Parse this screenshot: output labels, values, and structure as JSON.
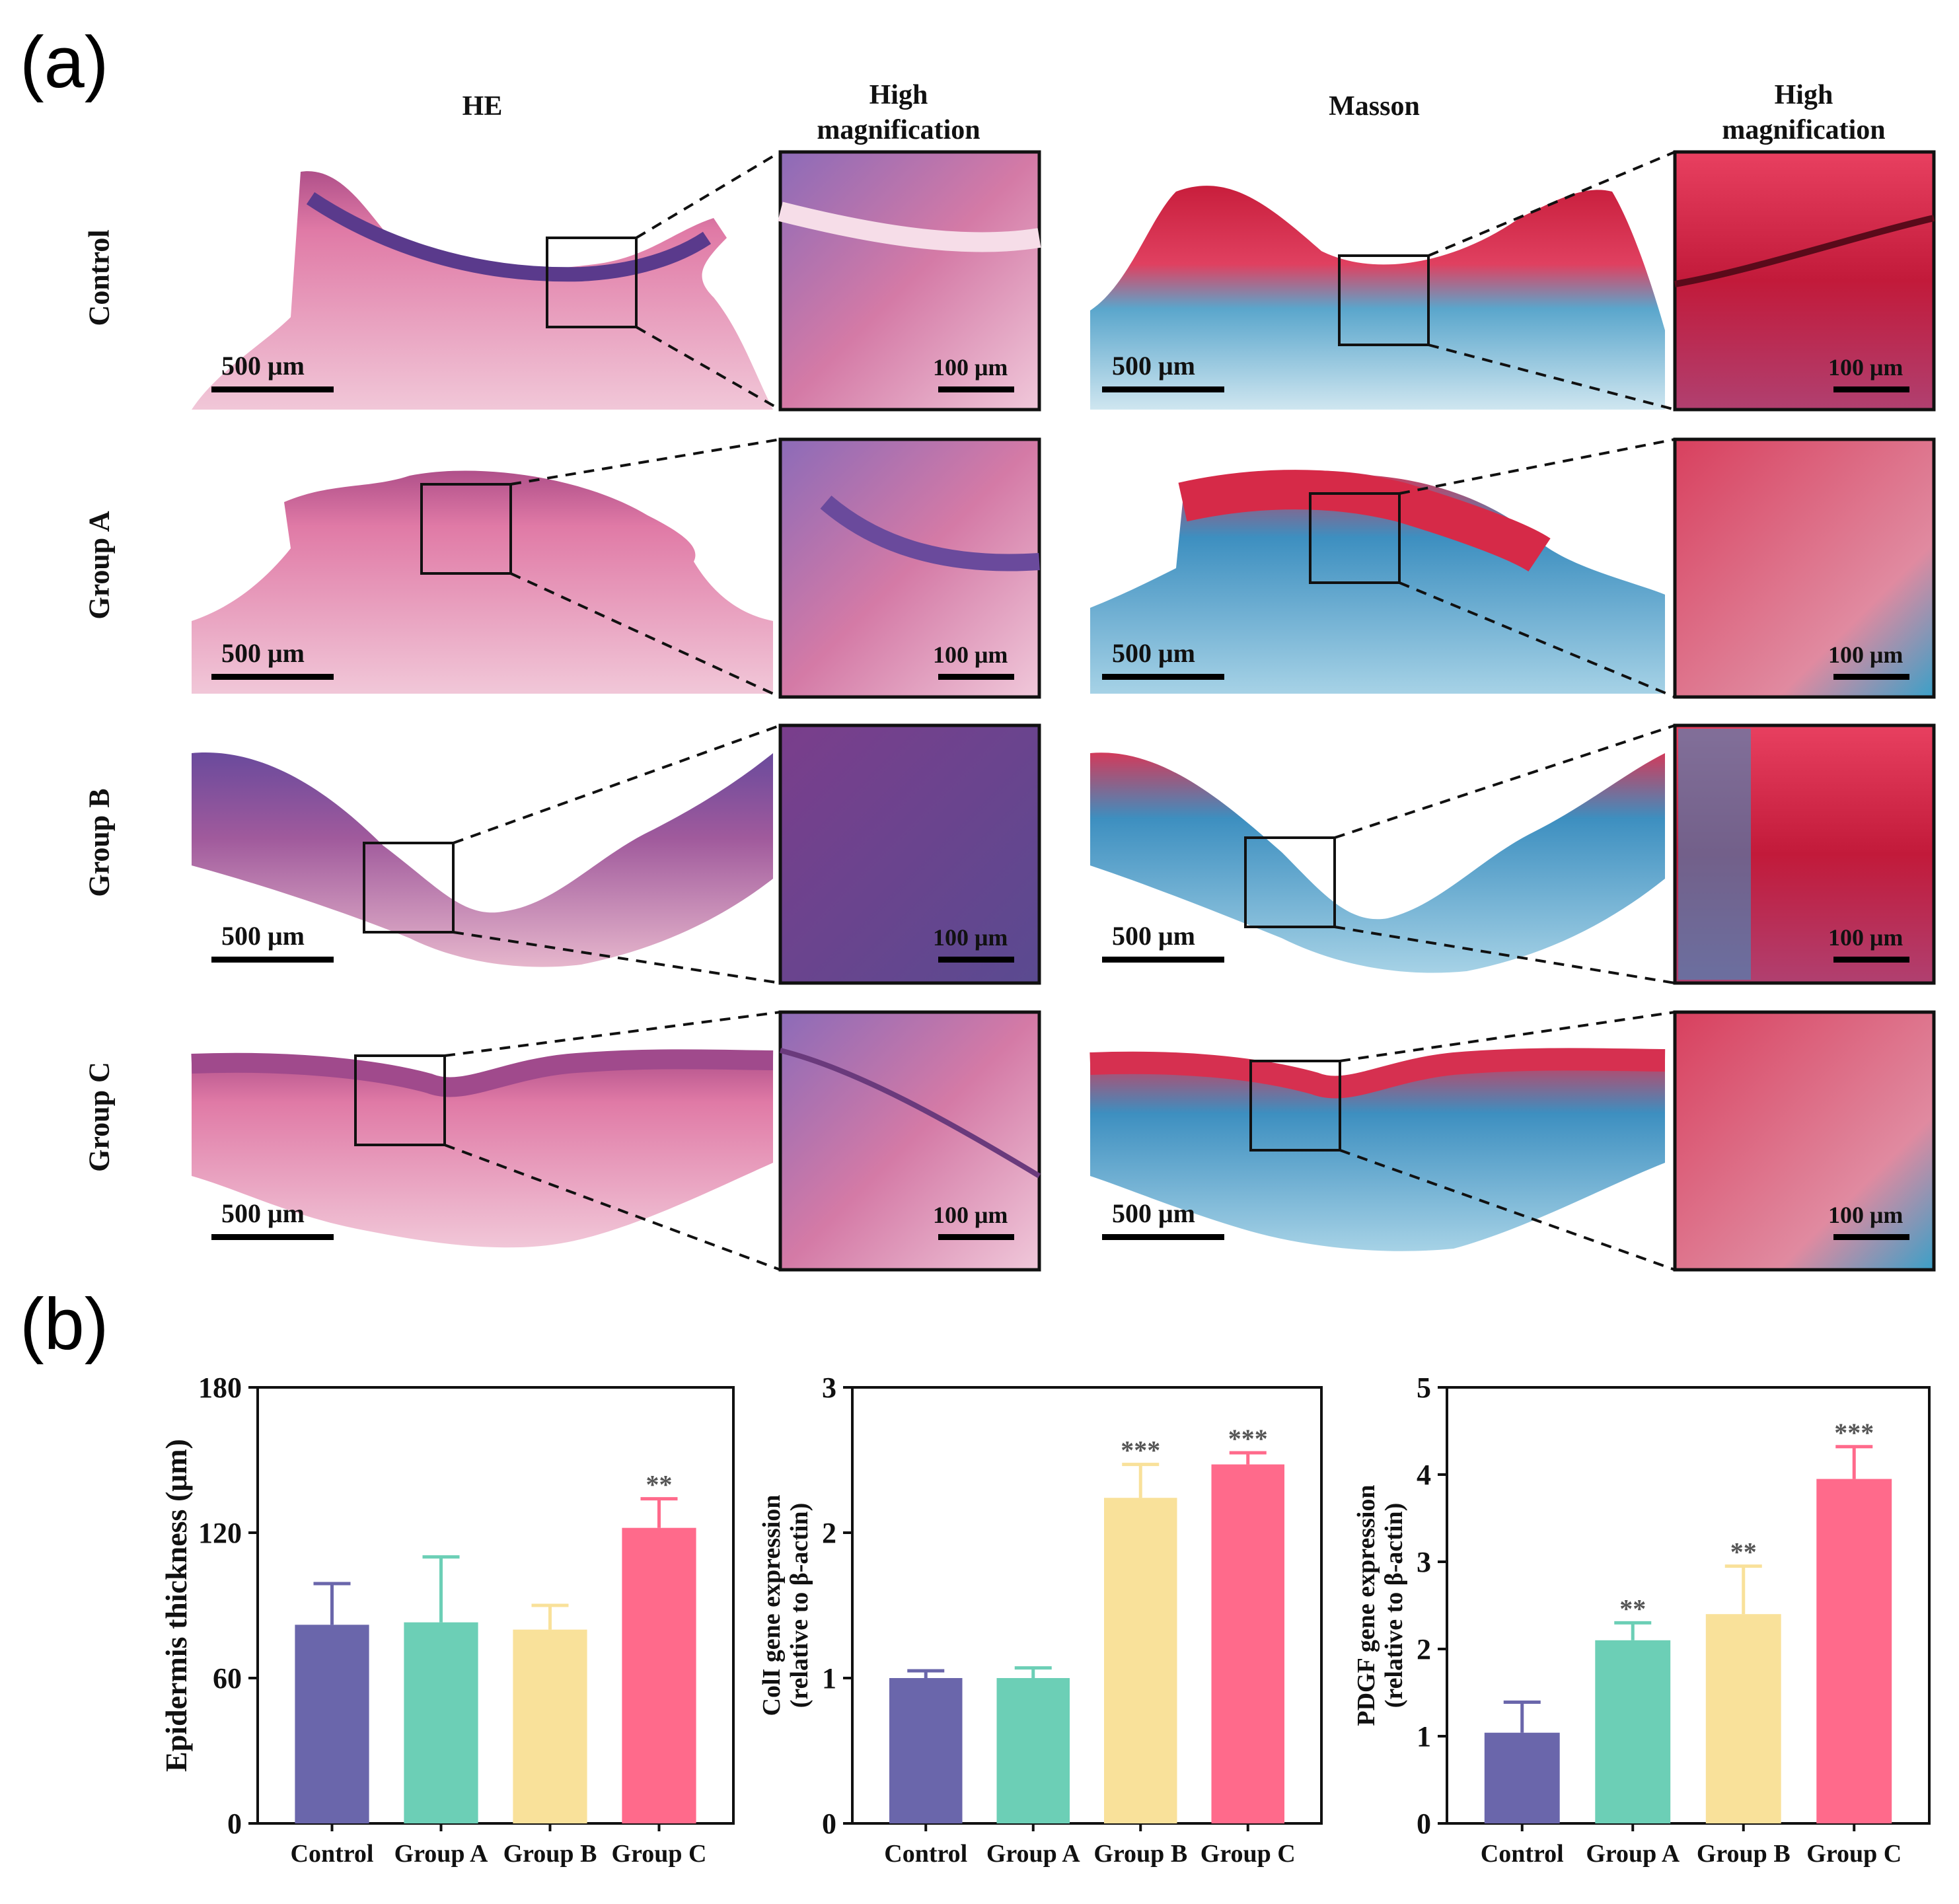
{
  "panel_a": {
    "label": "(a)",
    "columns": {
      "he": "HE",
      "high_mag_1": [
        "High",
        "magnification"
      ],
      "masson": "Masson",
      "high_mag_2": [
        "High",
        "magnification"
      ]
    },
    "rows": [
      "Control",
      "Group A",
      "Group B",
      "Group C"
    ],
    "scale_large": "500 μm",
    "scale_small": "100 μm",
    "colors": {
      "he_pink": "#e89ab8",
      "he_purple": "#7c5aa6",
      "masson_red": "#d0203c",
      "masson_blue": "#3aa0c8"
    }
  },
  "panel_b": {
    "label": "(b)"
  },
  "chart_data": [
    {
      "type": "bar",
      "categories": [
        "Control",
        "Group A",
        "Group B",
        "Group C"
      ],
      "values": [
        82,
        83,
        80,
        122
      ],
      "errors": [
        17,
        27,
        10,
        12
      ],
      "significance": [
        "",
        "",
        "",
        "**"
      ],
      "colors": [
        "#6a66ab",
        "#6ccfb6",
        "#f9e19a",
        "#ff6a8b"
      ],
      "ylabel": "Epidermis thickness (μm)",
      "ylim": [
        0,
        180
      ],
      "yticks": [
        "0",
        "60",
        "120",
        "180"
      ]
    },
    {
      "type": "bar",
      "categories": [
        "Control",
        "Group A",
        "Group B",
        "Group C"
      ],
      "values": [
        1.0,
        1.0,
        2.24,
        2.47
      ],
      "errors": [
        0.05,
        0.07,
        0.23,
        0.08
      ],
      "significance": [
        "",
        "",
        "***",
        "***"
      ],
      "colors": [
        "#6a66ab",
        "#6ccfb6",
        "#f9e19a",
        "#ff6a8b"
      ],
      "ylabel": [
        "ColI gene expression",
        "(relative to β-actin)"
      ],
      "ylim": [
        0,
        3
      ],
      "yticks": [
        "0",
        "1",
        "2",
        "3"
      ]
    },
    {
      "type": "bar",
      "categories": [
        "Control",
        "Group A",
        "Group B",
        "Group C"
      ],
      "values": [
        1.04,
        2.1,
        2.4,
        3.95
      ],
      "errors": [
        0.35,
        0.2,
        0.55,
        0.37
      ],
      "significance": [
        "",
        "**",
        "**",
        "***"
      ],
      "colors": [
        "#6a66ab",
        "#6ccfb6",
        "#f9e19a",
        "#ff6a8b"
      ],
      "ylabel": [
        "PDGF gene expression",
        "(relative to β-actin)"
      ],
      "ylim": [
        0,
        5
      ],
      "yticks": [
        "0",
        "1",
        "2",
        "3",
        "4",
        "5"
      ]
    }
  ]
}
